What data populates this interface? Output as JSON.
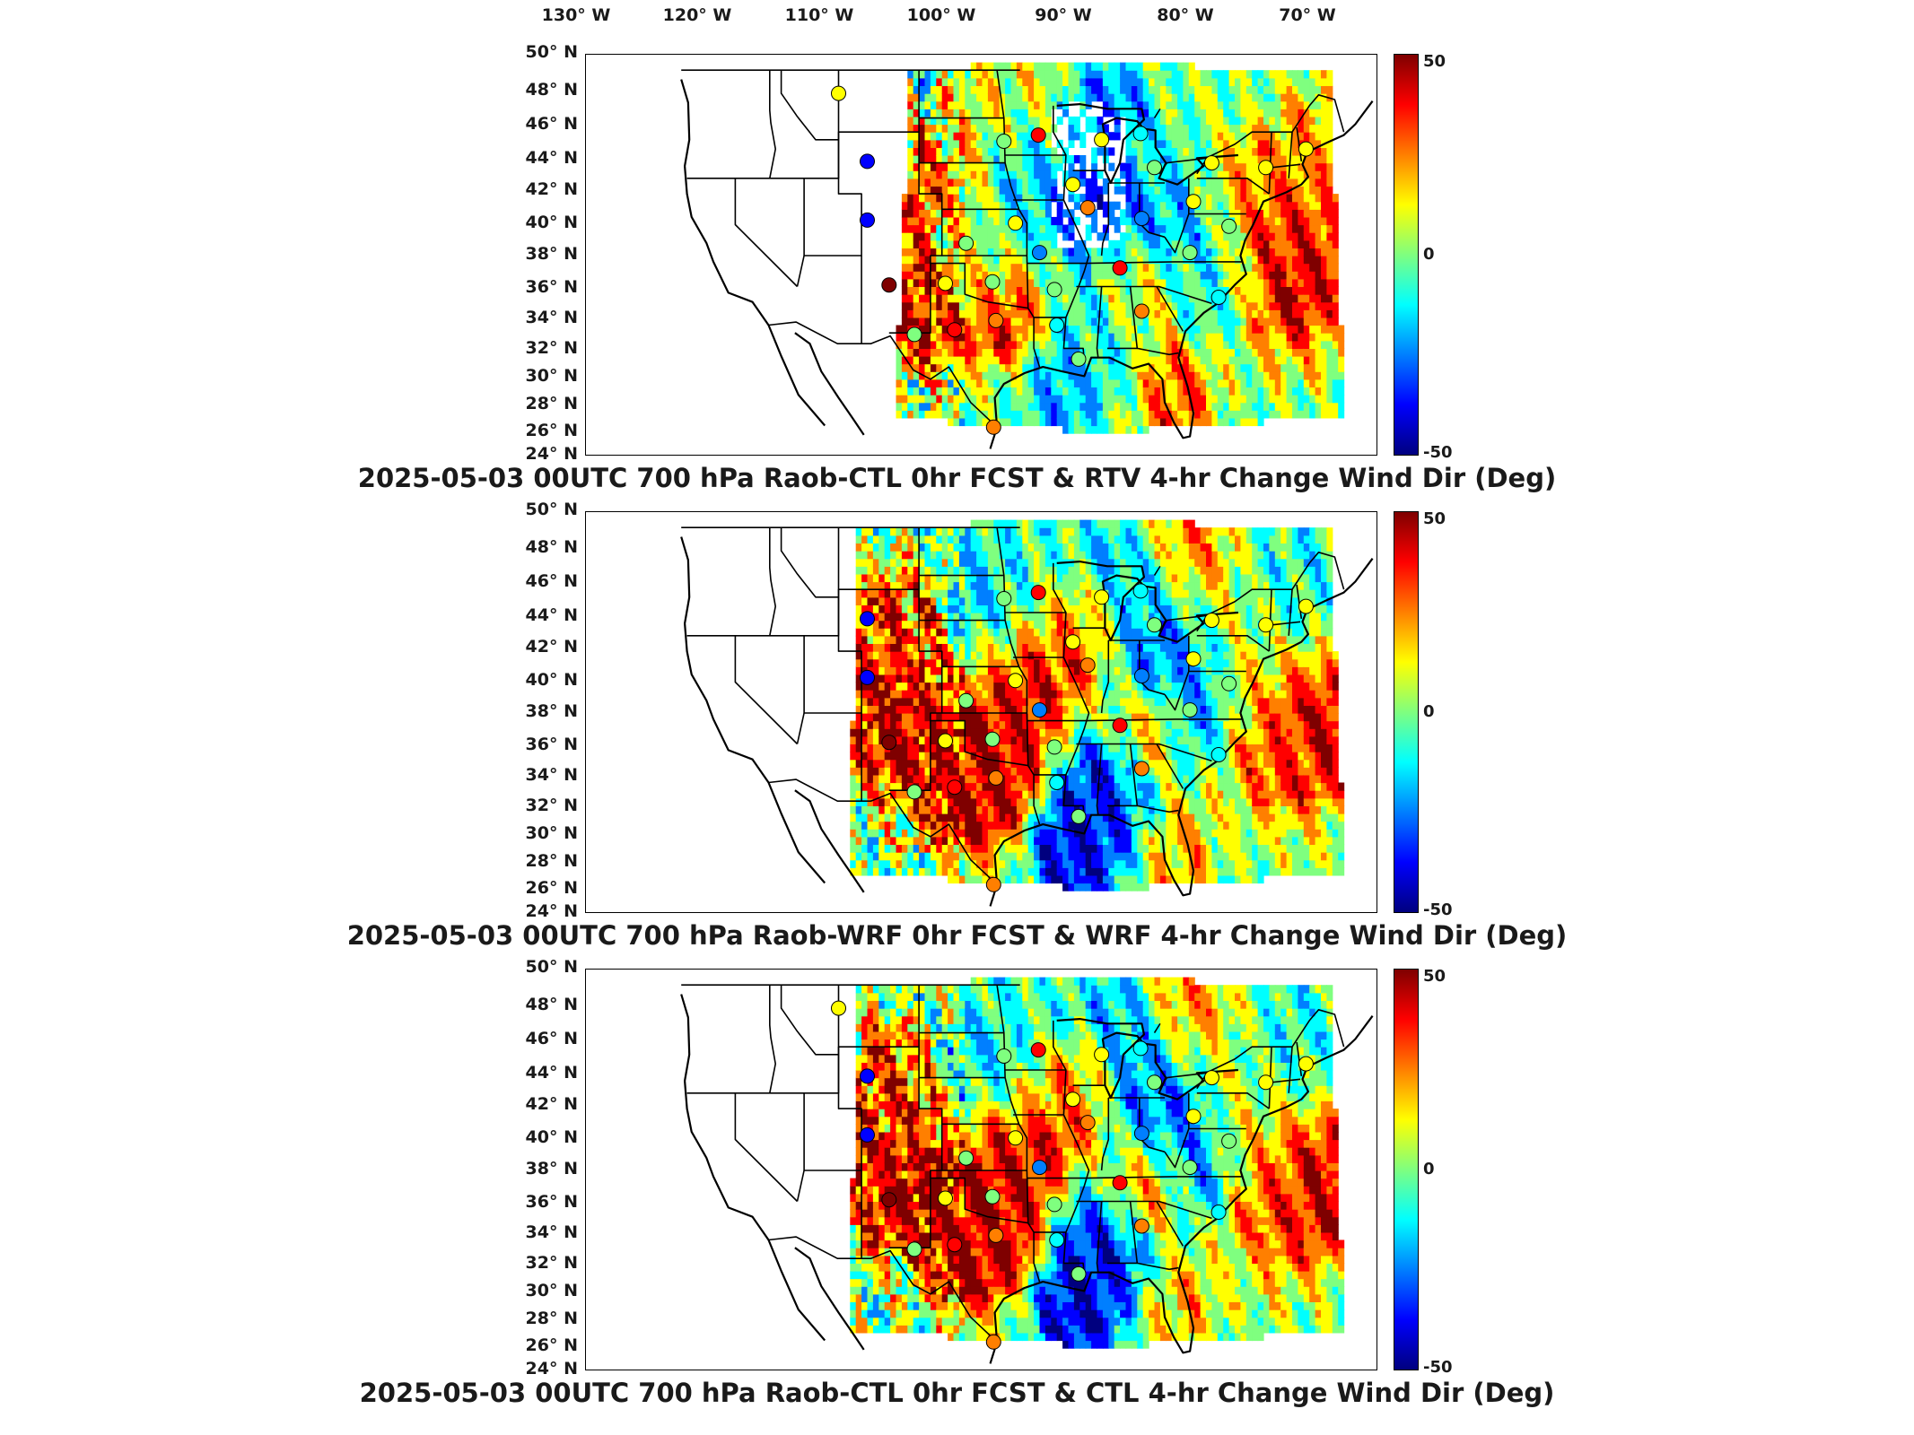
{
  "longitude_labels": [
    "130° W",
    "120° W",
    "110° W",
    "100° W",
    "90° W",
    "80° W",
    "70° W"
  ],
  "latitude_labels": [
    "50° N",
    "48° N",
    "46° N",
    "44° N",
    "42° N",
    "40° N",
    "38° N",
    "36° N",
    "34° N",
    "32° N",
    "30° N",
    "28° N",
    "26° N",
    "24° N"
  ],
  "colorbar": {
    "max_label": "50",
    "mid_label": "0",
    "min_label": "-50",
    "colormap": "jet",
    "colors": [
      "#00007f",
      "#0000ff",
      "#007fff",
      "#00ffff",
      "#7fff7f",
      "#ffff00",
      "#ff7f00",
      "#ff0000",
      "#7f0000"
    ]
  },
  "panels": [
    {
      "title": "2025-05-03 00UTC 700 hPa Raob-CTL 0hr FCST & RTV 4-hr Change Wind Dir (Deg)"
    },
    {
      "title": "2025-05-03 00UTC 700 hPa Raob-WRF 0hr FCST & WRF 4-hr Change Wind Dir (Deg)"
    },
    {
      "title": "2025-05-03 00UTC 700 hPa Raob-CTL 0hr FCST & CTL 4-hr Change Wind Dir (Deg)"
    }
  ],
  "map_data": {
    "projection": "Lambert conformal",
    "lon_range": [
      -133,
      -64
    ],
    "lat_range": [
      24,
      50
    ],
    "field_units": "Deg",
    "field_range": [
      -50,
      50
    ],
    "raob_stations": [
      {
        "lon": -111.0,
        "lat": 47.5,
        "panels": [
          15,
          null,
          15
        ]
      },
      {
        "lon": -108.5,
        "lat": 43.1,
        "panels": [
          -35,
          -35,
          -35
        ]
      },
      {
        "lon": -108.5,
        "lat": 39.3,
        "panels": [
          -35,
          -35,
          -35
        ]
      },
      {
        "lon": -106.6,
        "lat": 35.1,
        "panels": [
          50,
          50,
          50
        ]
      },
      {
        "lon": -104.4,
        "lat": 31.9,
        "panels": [
          5,
          5,
          5
        ]
      },
      {
        "lon": -101.7,
        "lat": 35.2,
        "panels": [
          10,
          10,
          10
        ]
      },
      {
        "lon": -100.9,
        "lat": 32.2,
        "panels": [
          40,
          40,
          40
        ]
      },
      {
        "lon": -97.3,
        "lat": 32.8,
        "panels": [
          30,
          30,
          30
        ]
      },
      {
        "lon": -97.6,
        "lat": 35.3,
        "panels": [
          5,
          5,
          5
        ]
      },
      {
        "lon": -99.9,
        "lat": 37.8,
        "panels": [
          5,
          5,
          5
        ]
      },
      {
        "lon": -95.6,
        "lat": 39.1,
        "panels": [
          15,
          15,
          15
        ]
      },
      {
        "lon": -96.6,
        "lat": 44.4,
        "panels": [
          5,
          5,
          5
        ]
      },
      {
        "lon": -93.6,
        "lat": 44.8,
        "panels": [
          40,
          40,
          40
        ]
      },
      {
        "lon": -93.5,
        "lat": 37.2,
        "panels": [
          -20,
          -20,
          -20
        ]
      },
      {
        "lon": -92.2,
        "lat": 34.8,
        "panels": [
          0,
          0,
          0
        ]
      },
      {
        "lon": -90.6,
        "lat": 41.6,
        "panels": [
          10,
          10,
          10
        ]
      },
      {
        "lon": -89.3,
        "lat": 40.1,
        "panels": [
          30,
          30,
          30
        ]
      },
      {
        "lon": -88.1,
        "lat": 44.5,
        "panels": [
          15,
          15,
          15
        ]
      },
      {
        "lon": -84.7,
        "lat": 44.9,
        "panels": [
          -10,
          -10,
          -10
        ]
      },
      {
        "lon": -83.5,
        "lat": 42.7,
        "panels": [
          0,
          0,
          0
        ]
      },
      {
        "lon": -86.5,
        "lat": 36.2,
        "panels": [
          40,
          40,
          40
        ]
      },
      {
        "lon": -84.6,
        "lat": 39.4,
        "panels": [
          -25,
          -25,
          -25
        ]
      },
      {
        "lon": -84.6,
        "lat": 33.4,
        "panels": [
          25,
          25,
          25
        ]
      },
      {
        "lon": -92.0,
        "lat": 32.5,
        "panels": [
          -15,
          -15,
          -15
        ]
      },
      {
        "lon": -90.1,
        "lat": 30.3,
        "panels": [
          0,
          0,
          0
        ]
      },
      {
        "lon": -97.5,
        "lat": 25.9,
        "panels": [
          30,
          30,
          30
        ]
      },
      {
        "lon": -80.4,
        "lat": 37.2,
        "panels": [
          0,
          0,
          0
        ]
      },
      {
        "lon": -80.1,
        "lat": 40.5,
        "panels": [
          10,
          10,
          10
        ]
      },
      {
        "lon": -77.0,
        "lat": 38.9,
        "panels": [
          0,
          0,
          0
        ]
      },
      {
        "lon": -78.5,
        "lat": 43.0,
        "panels": [
          10,
          10,
          10
        ]
      },
      {
        "lon": -73.8,
        "lat": 42.7,
        "panels": [
          10,
          10,
          10
        ]
      },
      {
        "lon": -70.3,
        "lat": 43.9,
        "panels": [
          15,
          15,
          15
        ]
      },
      {
        "lon": -77.9,
        "lat": 34.3,
        "panels": [
          -15,
          -15,
          -15
        ]
      }
    ]
  }
}
